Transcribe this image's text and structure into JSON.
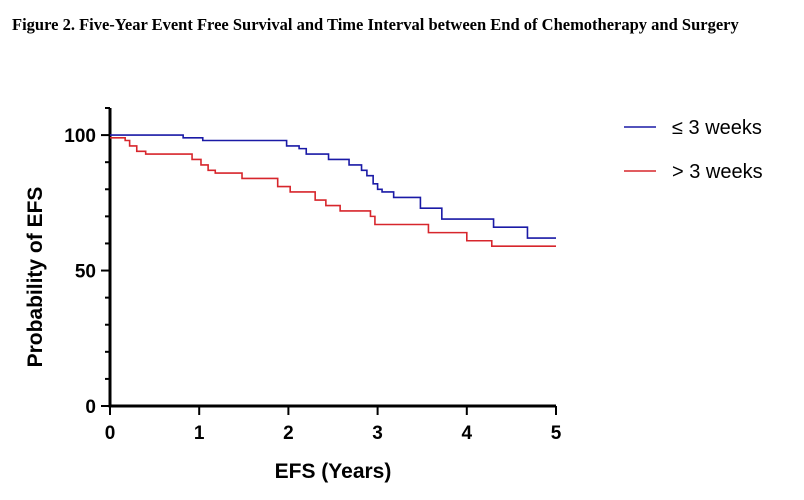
{
  "figure": {
    "title": "Figure 2. Five-Year Event Free Survival and Time Interval between End of Chemotherapy and Surgery"
  },
  "chart_data": {
    "type": "line",
    "step": true,
    "xlabel": "EFS (Years)",
    "ylabel": "Probability of EFS",
    "xlim": [
      0,
      5
    ],
    "ylim": [
      0,
      110
    ],
    "xticks": [
      "0",
      "1",
      "2",
      "3",
      "4",
      "5"
    ],
    "yticks": [
      "0",
      "50",
      "100"
    ],
    "grid": false,
    "legend_position": "top-right",
    "series": [
      {
        "name": "≤ 3 weeks",
        "color": "#1a1aa6",
        "points": [
          [
            0,
            100
          ],
          [
            0.82,
            99
          ],
          [
            1.04,
            98
          ],
          [
            1.98,
            96
          ],
          [
            2.12,
            95
          ],
          [
            2.2,
            93
          ],
          [
            2.45,
            91
          ],
          [
            2.68,
            89
          ],
          [
            2.82,
            87
          ],
          [
            2.88,
            85
          ],
          [
            2.95,
            82
          ],
          [
            3.0,
            80
          ],
          [
            3.05,
            79
          ],
          [
            3.18,
            77
          ],
          [
            3.48,
            73
          ],
          [
            3.72,
            69
          ],
          [
            4.28,
            69
          ],
          [
            4.3,
            66
          ],
          [
            4.65,
            66
          ],
          [
            4.68,
            62
          ],
          [
            5.0,
            62
          ]
        ]
      },
      {
        "name": "> 3 weeks",
        "color": "#d7262c",
        "points": [
          [
            0,
            99
          ],
          [
            0.17,
            98
          ],
          [
            0.22,
            96
          ],
          [
            0.3,
            94
          ],
          [
            0.4,
            93
          ],
          [
            0.92,
            91
          ],
          [
            1.02,
            89
          ],
          [
            1.1,
            87
          ],
          [
            1.18,
            86
          ],
          [
            1.48,
            84
          ],
          [
            1.88,
            81
          ],
          [
            2.02,
            79
          ],
          [
            2.3,
            76
          ],
          [
            2.42,
            74
          ],
          [
            2.58,
            72
          ],
          [
            2.92,
            70
          ],
          [
            2.97,
            67
          ],
          [
            3.57,
            64
          ],
          [
            4.0,
            61
          ],
          [
            4.28,
            59
          ],
          [
            5.0,
            59
          ]
        ]
      }
    ]
  }
}
